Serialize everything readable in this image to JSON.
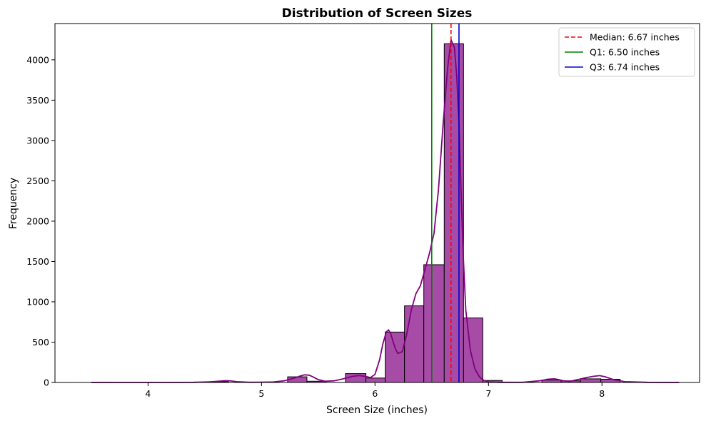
{
  "chart_data": {
    "type": "bar",
    "title": "Distribution of Screen Sizes",
    "xlabel": "Screen Size (inches)",
    "ylabel": "Frequency",
    "xlim": [
      3.18,
      8.86
    ],
    "ylim": [
      0,
      4450
    ],
    "x_ticks": [
      4,
      5,
      6,
      7,
      8
    ],
    "y_ticks": [
      0,
      500,
      1000,
      1500,
      2000,
      2500,
      3000,
      3500,
      4000
    ],
    "grid": false,
    "legend_position": "top-right",
    "bar_color": "#A64CA6",
    "bar_edge_color": "#000000",
    "kde_color": "#800080",
    "bins": [
      {
        "x0": 3.5,
        "x1": 3.67,
        "count": 1
      },
      {
        "x0": 3.67,
        "x1": 3.85,
        "count": 0
      },
      {
        "x0": 3.85,
        "x1": 4.02,
        "count": 0
      },
      {
        "x0": 4.02,
        "x1": 4.19,
        "count": 0
      },
      {
        "x0": 4.19,
        "x1": 4.36,
        "count": 0
      },
      {
        "x0": 4.36,
        "x1": 4.54,
        "count": 0
      },
      {
        "x0": 4.54,
        "x1": 4.71,
        "count": 10
      },
      {
        "x0": 4.71,
        "x1": 4.88,
        "count": 0
      },
      {
        "x0": 4.88,
        "x1": 5.05,
        "count": 0
      },
      {
        "x0": 5.05,
        "x1": 5.23,
        "count": 0
      },
      {
        "x0": 5.23,
        "x1": 5.4,
        "count": 70
      },
      {
        "x0": 5.4,
        "x1": 5.57,
        "count": 15
      },
      {
        "x0": 5.57,
        "x1": 5.74,
        "count": 0
      },
      {
        "x0": 5.74,
        "x1": 5.92,
        "count": 110
      },
      {
        "x0": 5.92,
        "x1": 6.09,
        "count": 55
      },
      {
        "x0": 6.09,
        "x1": 6.26,
        "count": 625
      },
      {
        "x0": 6.26,
        "x1": 6.43,
        "count": 950
      },
      {
        "x0": 6.43,
        "x1": 6.61,
        "count": 1460
      },
      {
        "x0": 6.61,
        "x1": 6.78,
        "count": 4200
      },
      {
        "x0": 6.78,
        "x1": 6.95,
        "count": 800
      },
      {
        "x0": 6.95,
        "x1": 7.12,
        "count": 25
      },
      {
        "x0": 7.12,
        "x1": 7.3,
        "count": 0
      },
      {
        "x0": 7.3,
        "x1": 7.47,
        "count": 0
      },
      {
        "x0": 7.47,
        "x1": 7.64,
        "count": 30
      },
      {
        "x0": 7.64,
        "x1": 7.81,
        "count": 20
      },
      {
        "x0": 7.81,
        "x1": 7.99,
        "count": 45
      },
      {
        "x0": 7.99,
        "x1": 8.16,
        "count": 40
      },
      {
        "x0": 8.16,
        "x1": 8.33,
        "count": 0
      },
      {
        "x0": 8.33,
        "x1": 8.5,
        "count": 0
      },
      {
        "x0": 8.5,
        "x1": 8.68,
        "count": 1
      }
    ],
    "kde": {
      "x": [
        3.5,
        3.8,
        4.1,
        4.4,
        4.55,
        4.62,
        4.68,
        4.72,
        4.78,
        4.9,
        5.1,
        5.2,
        5.28,
        5.34,
        5.38,
        5.42,
        5.46,
        5.5,
        5.56,
        5.64,
        5.72,
        5.8,
        5.86,
        5.92,
        5.96,
        6.0,
        6.04,
        6.07,
        6.1,
        6.12,
        6.14,
        6.16,
        6.18,
        6.2,
        6.24,
        6.28,
        6.32,
        6.36,
        6.4,
        6.44,
        6.48,
        6.52,
        6.56,
        6.6,
        6.64,
        6.67,
        6.7,
        6.72,
        6.74,
        6.76,
        6.78,
        6.8,
        6.84,
        6.88,
        6.92,
        6.96,
        7.0,
        7.1,
        7.3,
        7.45,
        7.52,
        7.58,
        7.62,
        7.66,
        7.72,
        7.8,
        7.86,
        7.92,
        7.98,
        8.03,
        8.1,
        8.2,
        8.4,
        8.68
      ],
      "y": [
        0,
        0,
        0,
        2,
        8,
        15,
        22,
        20,
        10,
        2,
        5,
        20,
        50,
        80,
        95,
        90,
        65,
        35,
        15,
        20,
        45,
        75,
        85,
        75,
        60,
        100,
        280,
        480,
        630,
        650,
        600,
        500,
        420,
        360,
        380,
        600,
        900,
        1100,
        1200,
        1400,
        1600,
        1850,
        2400,
        3200,
        3900,
        4250,
        4150,
        3800,
        3200,
        2300,
        1500,
        900,
        400,
        170,
        70,
        25,
        8,
        2,
        2,
        20,
        40,
        45,
        35,
        20,
        15,
        40,
        60,
        75,
        85,
        70,
        35,
        10,
        2,
        0
      ]
    },
    "lines": [
      {
        "name": "Median: 6.67 inches",
        "x": 6.67,
        "color": "#FF0000",
        "dash": true
      },
      {
        "name": "Q1: 6.50 inches",
        "x": 6.5,
        "color": "#008000",
        "dash": false
      },
      {
        "name": "Q3: 6.74 inches",
        "x": 6.74,
        "color": "#0000CD",
        "dash": false
      }
    ]
  }
}
